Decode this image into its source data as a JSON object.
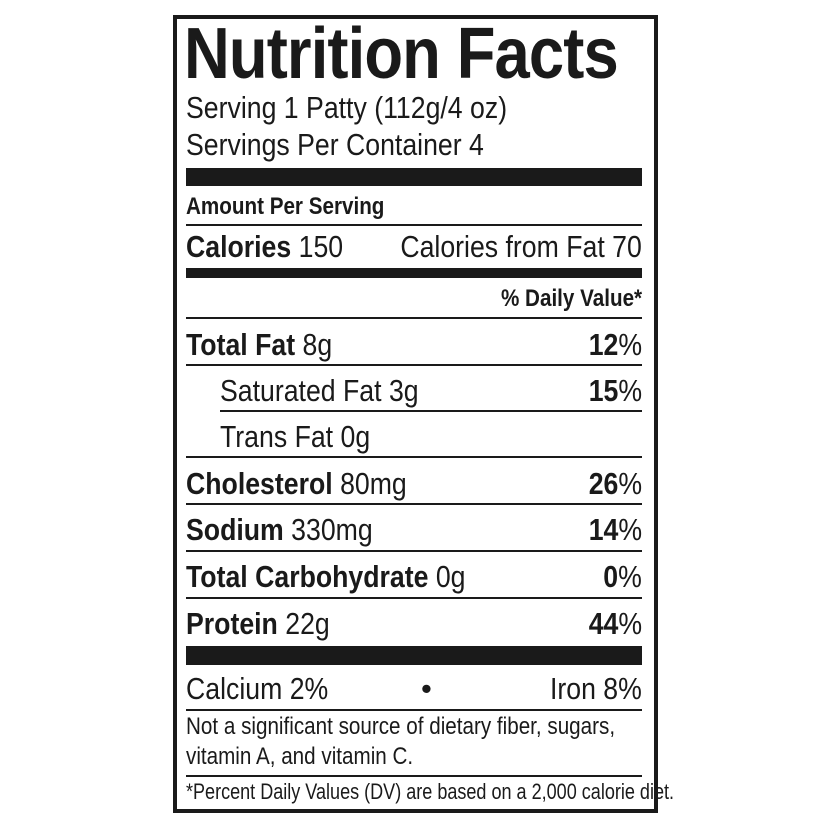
{
  "title": "Nutrition Facts",
  "serving": "Serving 1 Patty (112g/4 oz)",
  "servings_per_container": "Servings Per Container 4",
  "amount_per_serving": "Amount Per Serving",
  "calories": {
    "label": "Calories",
    "value": "150",
    "from_fat": "Calories from Fat 70"
  },
  "daily_value_header": "% Daily Value*",
  "nutrients": [
    {
      "name": "Total Fat",
      "amount": "8g",
      "dv_num": "12",
      "dv_pct": "%"
    },
    {
      "name": "Saturated Fat 3g",
      "amount": "",
      "dv_num": "15",
      "dv_pct": "%"
    },
    {
      "name": "Trans Fat 0g",
      "amount": "",
      "dv_num": "",
      "dv_pct": ""
    },
    {
      "name": "Cholesterol",
      "amount": "80mg",
      "dv_num": "26",
      "dv_pct": "%"
    },
    {
      "name": "Sodium",
      "amount": "330mg",
      "dv_num": "14",
      "dv_pct": "%"
    },
    {
      "name": "Total Carbohydrate",
      "amount": "0g",
      "dv_num": "0",
      "dv_pct": "%"
    },
    {
      "name": "Protein",
      "amount": "22g",
      "dv_num": "44",
      "dv_pct": "%"
    }
  ],
  "vitamins": {
    "calcium": "Calcium 2%",
    "separator": "•",
    "iron": "Iron 8%"
  },
  "not_significant": [
    "Not a significant source of dietary fiber, sugars,",
    "vitamin A, and vitamin C."
  ],
  "footnote": "*Percent Daily Values (DV) are based on a 2,000 calorie diet."
}
